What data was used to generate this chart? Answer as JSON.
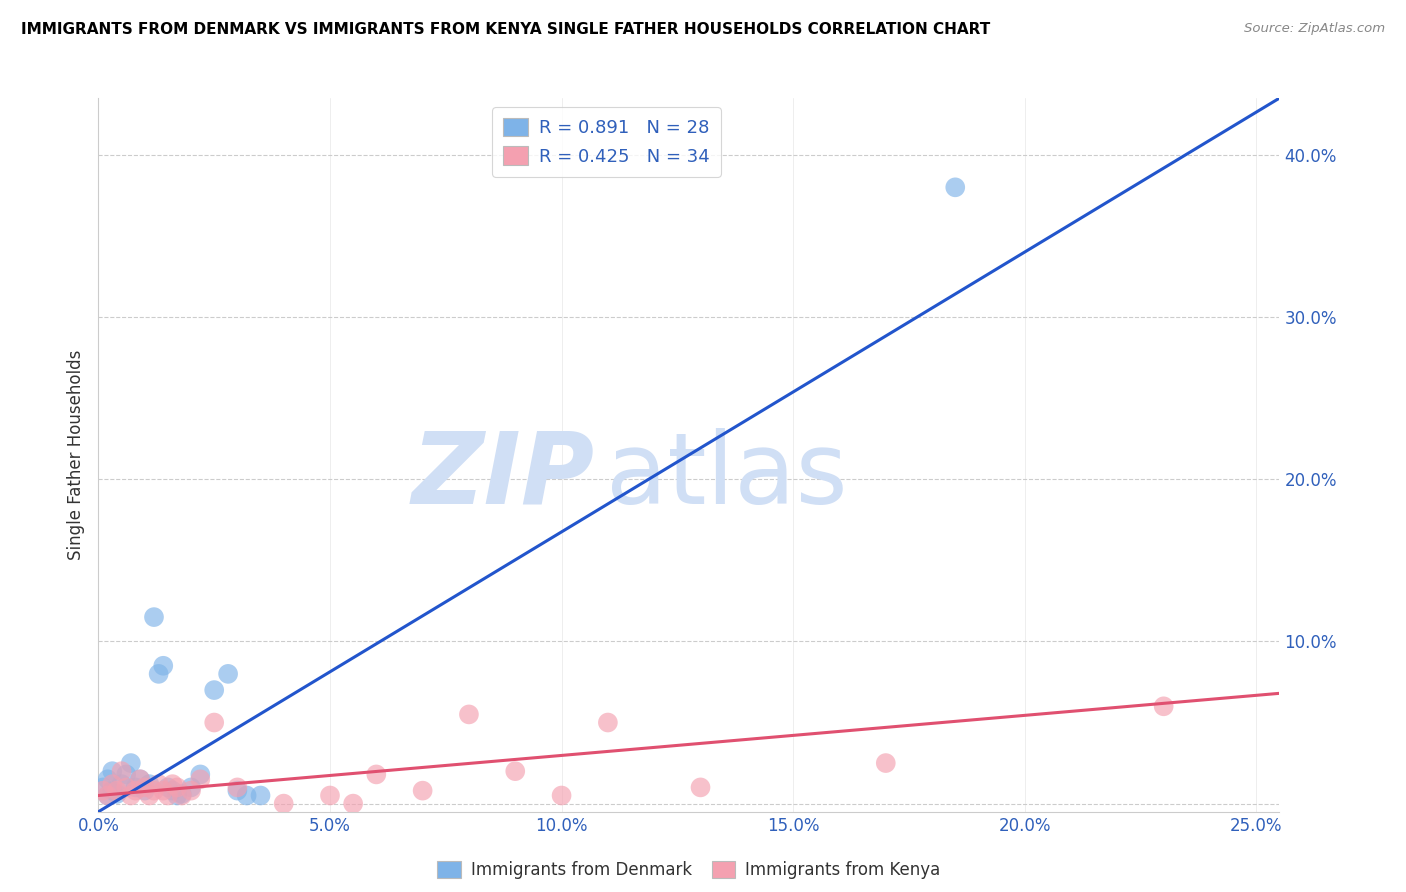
{
  "title": "IMMIGRANTS FROM DENMARK VS IMMIGRANTS FROM KENYA SINGLE FATHER HOUSEHOLDS CORRELATION CHART",
  "source": "Source: ZipAtlas.com",
  "ylabel": "Single Father Households",
  "x_tick_values": [
    0.0,
    0.05,
    0.1,
    0.15,
    0.2,
    0.25
  ],
  "x_tick_labels": [
    "0.0%",
    "5.0%",
    "10.0%",
    "15.0%",
    "20.0%",
    "25.0%"
  ],
  "y_tick_values": [
    0.0,
    0.1,
    0.2,
    0.3,
    0.4
  ],
  "y_tick_labels": [
    "",
    "10.0%",
    "20.0%",
    "30.0%",
    "40.0%"
  ],
  "xlim": [
    0.0,
    0.255
  ],
  "ylim": [
    -0.005,
    0.435
  ],
  "denmark_color": "#7eb3e8",
  "kenya_color": "#f4a0b0",
  "denmark_line_color": "#2255cc",
  "kenya_line_color": "#e05070",
  "denmark_R": 0.891,
  "denmark_N": 28,
  "kenya_R": 0.425,
  "kenya_N": 34,
  "watermark_zip": "ZIP",
  "watermark_atlas": "atlas",
  "watermark_color": "#d0dff5",
  "legend_label_denmark": "Immigrants from Denmark",
  "legend_label_kenya": "Immigrants from Kenya",
  "denmark_scatter_x": [
    0.001,
    0.002,
    0.002,
    0.003,
    0.003,
    0.004,
    0.005,
    0.006,
    0.007,
    0.008,
    0.009,
    0.01,
    0.011,
    0.012,
    0.013,
    0.014,
    0.015,
    0.016,
    0.017,
    0.018,
    0.02,
    0.022,
    0.025,
    0.028,
    0.03,
    0.032,
    0.035,
    0.185
  ],
  "denmark_scatter_y": [
    0.01,
    0.005,
    0.015,
    0.008,
    0.02,
    0.006,
    0.012,
    0.018,
    0.025,
    0.01,
    0.015,
    0.008,
    0.012,
    0.115,
    0.08,
    0.085,
    0.01,
    0.008,
    0.005,
    0.006,
    0.01,
    0.018,
    0.07,
    0.08,
    0.008,
    0.005,
    0.005,
    0.38
  ],
  "kenya_scatter_x": [
    0.001,
    0.002,
    0.003,
    0.004,
    0.005,
    0.006,
    0.007,
    0.008,
    0.009,
    0.01,
    0.011,
    0.012,
    0.013,
    0.014,
    0.015,
    0.016,
    0.017,
    0.018,
    0.02,
    0.022,
    0.025,
    0.03,
    0.04,
    0.05,
    0.055,
    0.06,
    0.07,
    0.08,
    0.09,
    0.1,
    0.11,
    0.13,
    0.17,
    0.23
  ],
  "kenya_scatter_y": [
    0.008,
    0.005,
    0.012,
    0.008,
    0.02,
    0.01,
    0.005,
    0.008,
    0.015,
    0.01,
    0.005,
    0.008,
    0.012,
    0.008,
    0.005,
    0.012,
    0.01,
    0.005,
    0.008,
    0.015,
    0.05,
    0.01,
    0.0,
    0.005,
    0.0,
    0.018,
    0.008,
    0.055,
    0.02,
    0.005,
    0.05,
    0.01,
    0.025,
    0.06
  ],
  "dk_line_x0": 0.0,
  "dk_line_y0": -0.005,
  "dk_line_x1": 0.255,
  "dk_line_y1": 0.435,
  "ke_line_x0": 0.0,
  "ke_line_y0": 0.005,
  "ke_line_x1": 0.255,
  "ke_line_y1": 0.068
}
